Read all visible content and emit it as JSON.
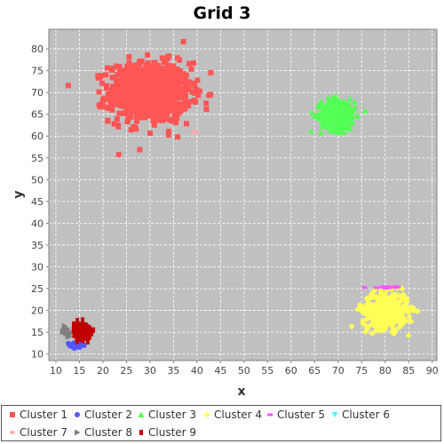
{
  "chart_data": {
    "type": "scatter",
    "title": "Grid 3",
    "xlabel": "x",
    "ylabel": "y",
    "xlim": [
      8.5,
      91
    ],
    "ylim": [
      8.5,
      84.5
    ],
    "x_ticks": [
      10,
      15,
      20,
      25,
      30,
      35,
      40,
      45,
      50,
      55,
      60,
      65,
      70,
      75,
      80,
      85,
      90
    ],
    "y_ticks": [
      10,
      15,
      20,
      25,
      30,
      35,
      40,
      45,
      50,
      55,
      60,
      65,
      70,
      75,
      80
    ],
    "grid": true,
    "legend_position": "bottom",
    "plot_background": "#c0c0c0",
    "series": [
      {
        "name": "Cluster 1",
        "color": "#ff5555",
        "marker": "square",
        "center": [
          30,
          70
        ],
        "spread": [
          4.3,
          3.4
        ],
        "count": 900
      },
      {
        "name": "Cluster 2",
        "color": "#5555ff",
        "marker": "circle",
        "center": [
          14.5,
          12
        ],
        "spread": [
          0.8,
          0.3
        ],
        "count": 30
      },
      {
        "name": "Cluster 3",
        "color": "#55ff55",
        "marker": "triangle-up",
        "center": [
          70,
          65
        ],
        "spread": [
          1.8,
          1.8
        ],
        "count": 350
      },
      {
        "name": "Cluster 4",
        "color": "#ffff55",
        "marker": "diamond",
        "center": [
          80,
          20
        ],
        "spread": [
          2.4,
          2.0
        ],
        "count": 420
      },
      {
        "name": "Cluster 5",
        "color": "#ff55ff",
        "marker": "rect-horizontal",
        "center": [
          81,
          25.3
        ],
        "spread": [
          1.8,
          0.1
        ],
        "count": 14
      },
      {
        "name": "Cluster 6",
        "color": "#55ffff",
        "marker": "triangle-down",
        "center": [
          0,
          0
        ],
        "spread": [
          0,
          0
        ],
        "count": 0
      },
      {
        "name": "Cluster 7",
        "color": "#ffaaaa",
        "marker": "ellipse",
        "center": [
          39.5,
          61
        ],
        "spread": [
          0.2,
          0.2
        ],
        "count": 2
      },
      {
        "name": "Cluster 8",
        "color": "#808080",
        "marker": "triangle-right",
        "center": [
          12.3,
          15.2
        ],
        "spread": [
          0.4,
          0.5
        ],
        "count": 30
      },
      {
        "name": "Cluster 9",
        "color": "#c00000",
        "marker": "rect-vertical",
        "center": [
          15.6,
          15.2
        ],
        "spread": [
          0.9,
          0.9
        ],
        "count": 180
      }
    ]
  }
}
